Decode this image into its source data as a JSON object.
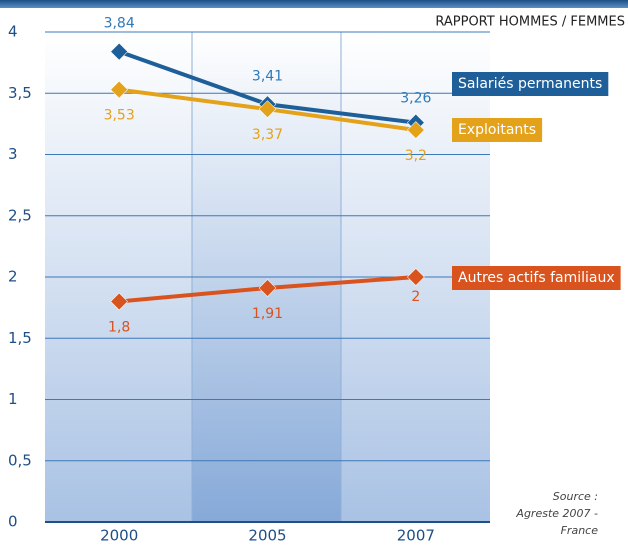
{
  "chart_data": {
    "type": "line",
    "title": "RAPPORT HOMMES / FEMMES",
    "source": [
      "Source :",
      "Agreste 2007 -",
      "France"
    ],
    "categories": [
      "2000",
      "2005",
      "2007"
    ],
    "series": [
      {
        "name": "Salariés permanents",
        "color": "#1f5f99",
        "label_color": "#2f7ab8",
        "values": [
          3.84,
          3.41,
          3.26
        ],
        "value_labels": [
          "3,84",
          "3,41",
          "3,26"
        ]
      },
      {
        "name": "Exploitants",
        "color": "#e3a21a",
        "label_color": "#e3a21a",
        "values": [
          3.53,
          3.37,
          3.2
        ],
        "value_labels": [
          "3,53",
          "3,37",
          "3,2"
        ]
      },
      {
        "name": "Autres actifs familiaux",
        "color": "#d9531e",
        "label_color": "#d9531e",
        "values": [
          1.8,
          1.91,
          2
        ],
        "value_labels": [
          "1,8",
          "1,91",
          "2"
        ]
      }
    ],
    "ylim": [
      0,
      4
    ],
    "yticks": [
      0,
      {
        "value": 0.5,
        "label": "0,5"
      },
      1,
      {
        "value": 1.5,
        "label": "1,5"
      },
      2,
      {
        "value": 2.5,
        "label": "2,5"
      },
      3,
      {
        "value": 3.5,
        "label": "3,5"
      },
      4
    ],
    "grid": true
  }
}
